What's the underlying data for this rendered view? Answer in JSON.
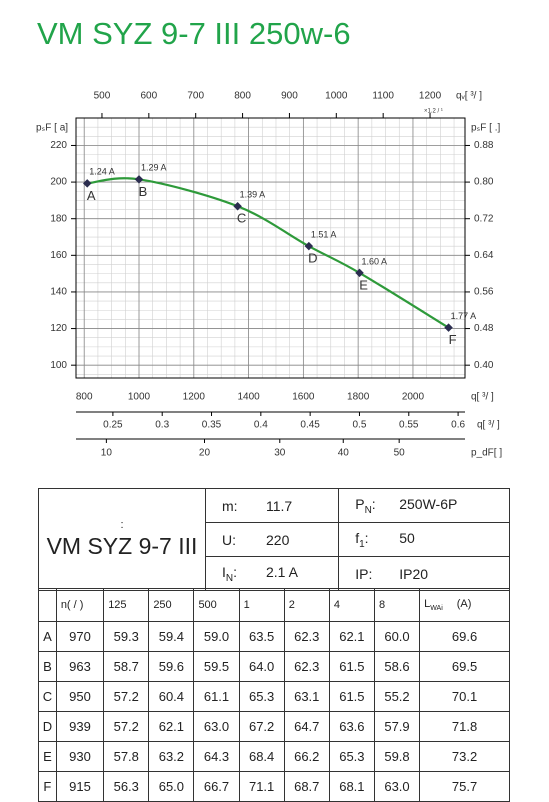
{
  "title": "VM SYZ 9-7 III 250w-6",
  "chart_data": {
    "type": "line",
    "x_label": "q[ ³/ ]",
    "y_label": "pₛF [ a]",
    "y2_label": "pₛF [    .]",
    "x": [
      811,
      1000,
      1360,
      1620,
      1805,
      2130
    ],
    "values": [
      199.3,
      201.5,
      186.8,
      165,
      150.4,
      120.5
    ],
    "color": "#2e9a3a",
    "marker_color": "#2b2d4f",
    "point_labels": [
      "A",
      "B",
      "C",
      "D",
      "E",
      "F"
    ],
    "current_labels": [
      "1.24 A",
      "1.29 A",
      "1.39 A",
      "1.51 A",
      "1.60 A",
      "1.77 A"
    ],
    "xlim": [
      770,
      2190
    ],
    "xticks": [
      800,
      1000,
      1200,
      1400,
      1600,
      1800,
      2000
    ],
    "ylim": [
      93,
      235
    ],
    "yticks": [
      100,
      120,
      140,
      160,
      180,
      200,
      220
    ],
    "y2lim": [
      0.372,
      0.94
    ],
    "y2ticks": [
      {
        "value": 0.4,
        "label": "0.40"
      },
      0.48,
      0.56,
      0.64,
      0.72,
      {
        "value": 0.8,
        "label": "0.80"
      },
      0.88
    ],
    "top_axis": {
      "label": "qᵥ[   ³/    ]",
      "note": "×1.2 / ¹",
      "lim": [
        444.6,
        1274.6
      ],
      "ticks": [
        500,
        600,
        700,
        800,
        900,
        1000,
        1100,
        1200
      ]
    },
    "axis_2": {
      "label": "q[ ³/ ]",
      "lim": [
        0.2126,
        0.607
      ],
      "ticks": [
        0.25,
        0.3,
        0.35,
        0.4,
        0.45,
        0.5,
        0.55,
        0.6
      ]
    },
    "axis_3": {
      "label": "p_dF[    ]",
      "scale": "sqrt",
      "lim": [
        7.6,
        63.2
      ],
      "ticks": [
        10,
        20,
        30,
        40,
        50
      ]
    },
    "grid": true
  },
  "specs": {
    "model_note": ":",
    "model": "VM SYZ 9-7 III",
    "rows": [
      [
        {
          "label": "m:",
          "value": "11.7"
        },
        {
          "label": "P",
          "sub": "N",
          "suffix": ":",
          "value": "250W-6P"
        }
      ],
      [
        {
          "label": "U:",
          "value": "220"
        },
        {
          "label": "f",
          "sub": "1",
          "suffix": ":",
          "value": "50"
        }
      ],
      [
        {
          "label": "I",
          "sub": "N",
          "suffix": ":",
          "value": "2.1  A"
        },
        {
          "label": "IP:",
          "value": "IP20"
        }
      ]
    ]
  },
  "table": {
    "header": [
      "",
      "n( / )",
      "125",
      "250",
      "500",
      "1",
      "2",
      "4",
      "8",
      {
        "text": "L",
        "sub": "WAi",
        "suffix": "(A)"
      }
    ],
    "rows": [
      [
        "A",
        "970",
        "59.3",
        "59.4",
        "59.0",
        "63.5",
        "62.3",
        "62.1",
        "60.0",
        "69.6"
      ],
      [
        "B",
        "963",
        "58.7",
        "59.6",
        "59.5",
        "64.0",
        "62.3",
        "61.5",
        "58.6",
        "69.5"
      ],
      [
        "C",
        "950",
        "57.2",
        "60.4",
        "61.1",
        "65.3",
        "63.1",
        "61.5",
        "55.2",
        "70.1"
      ],
      [
        "D",
        "939",
        "57.2",
        "62.1",
        "63.0",
        "67.2",
        "64.7",
        "63.6",
        "57.9",
        "71.8"
      ],
      [
        "E",
        "930",
        "57.8",
        "63.2",
        "64.3",
        "68.4",
        "66.2",
        "65.3",
        "59.8",
        "73.2"
      ],
      [
        "F",
        "915",
        "56.3",
        "65.0",
        "66.7",
        "71.1",
        "68.7",
        "68.1",
        "63.0",
        "75.7"
      ]
    ]
  }
}
